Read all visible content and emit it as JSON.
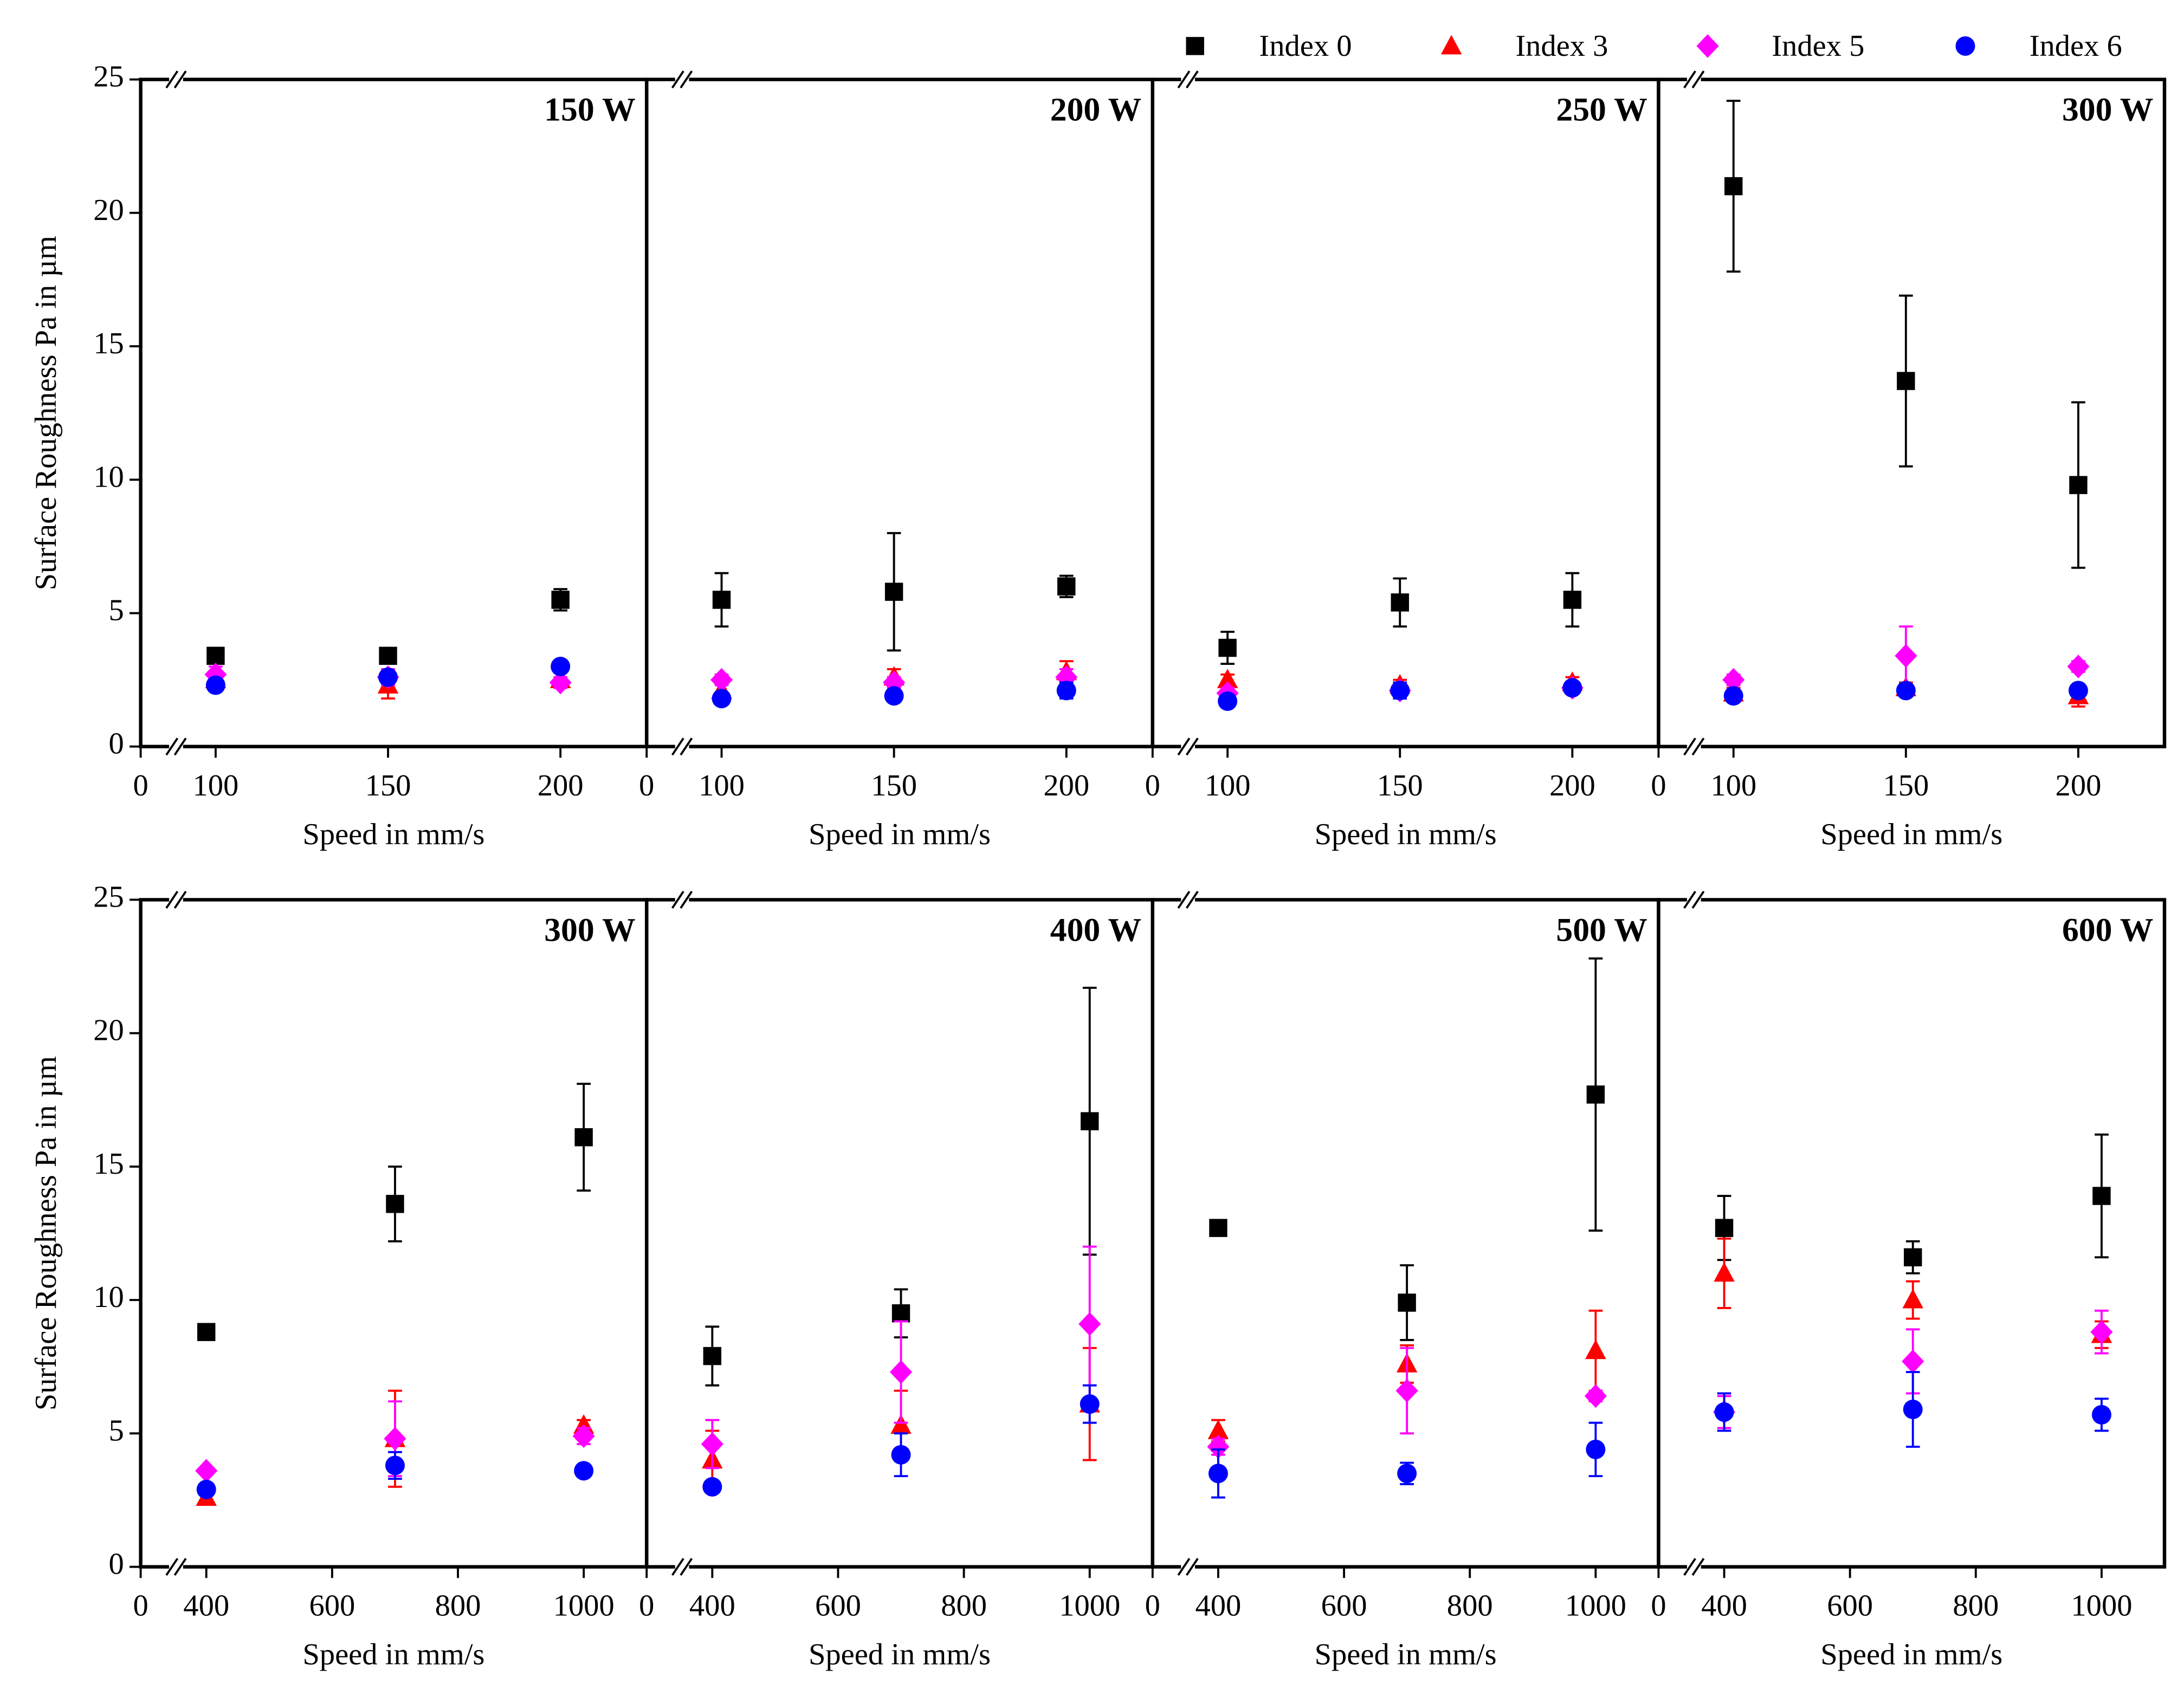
{
  "chart_data": [
    {
      "type": "scatter",
      "title": "150 W",
      "xlabel": "Speed in mm/s",
      "ylabel": "Surface Roughness Pa in µm",
      "x": [
        100,
        150,
        200
      ],
      "xlim": [
        0,
        225
      ],
      "xbreak": [
        5,
        90
      ],
      "xticks": [
        0,
        100,
        150,
        200
      ],
      "ylim": [
        0,
        25
      ],
      "yticks": [
        0,
        5,
        10,
        15,
        20,
        25
      ],
      "legend": "upper right",
      "series": [
        {
          "name": "Index 0",
          "color": "#000000",
          "marker": "square",
          "values": [
            3.4,
            3.4,
            5.5
          ],
          "errors": [
            0.2,
            0.1,
            0.4
          ]
        },
        {
          "name": "Index 3",
          "color": "#ff0000",
          "marker": "triangle",
          "values": [
            2.5,
            2.3,
            2.5
          ],
          "errors": [
            0.3,
            0.5,
            0.3
          ]
        },
        {
          "name": "Index 5",
          "color": "#ff00ff",
          "marker": "diamond",
          "values": [
            2.7,
            2.6,
            2.4
          ],
          "errors": [
            0.3,
            0.3,
            0.2
          ]
        },
        {
          "name": "Index 6",
          "color": "#0000ff",
          "marker": "circle",
          "values": [
            2.3,
            2.6,
            3.0
          ],
          "errors": [
            0.2,
            0.2,
            0.2
          ]
        }
      ]
    },
    {
      "type": "scatter",
      "title": "200 W",
      "xlabel": "Speed in mm/s",
      "x": [
        100,
        150,
        200
      ],
      "xlim": [
        0,
        225
      ],
      "xbreak": [
        5,
        90
      ],
      "xticks": [
        0,
        100,
        150,
        200
      ],
      "series": [
        {
          "name": "Index 0",
          "color": "#000000",
          "marker": "square",
          "values": [
            5.5,
            5.8,
            6.0
          ],
          "errors": [
            1.0,
            2.2,
            0.4
          ]
        },
        {
          "name": "Index 3",
          "color": "#ff0000",
          "marker": "triangle",
          "values": [
            2.1,
            2.6,
            2.8
          ],
          "errors": [
            0.3,
            0.3,
            0.4
          ]
        },
        {
          "name": "Index 5",
          "color": "#ff00ff",
          "marker": "diamond",
          "values": [
            2.5,
            2.4,
            2.6
          ],
          "errors": [
            0.2,
            0.2,
            0.3
          ]
        },
        {
          "name": "Index 6",
          "color": "#0000ff",
          "marker": "circle",
          "values": [
            1.8,
            1.9,
            2.1
          ],
          "errors": [
            0.2,
            0.2,
            0.3
          ]
        }
      ]
    },
    {
      "type": "scatter",
      "title": "250 W",
      "xlabel": "Speed in mm/s",
      "x": [
        100,
        150,
        200
      ],
      "xlim": [
        0,
        225
      ],
      "xbreak": [
        5,
        90
      ],
      "xticks": [
        0,
        100,
        150,
        200
      ],
      "series": [
        {
          "name": "Index 0",
          "color": "#000000",
          "marker": "square",
          "values": [
            3.7,
            5.4,
            5.5
          ],
          "errors": [
            0.6,
            0.9,
            1.0
          ]
        },
        {
          "name": "Index 3",
          "color": "#ff0000",
          "marker": "triangle",
          "values": [
            2.5,
            2.3,
            2.4
          ],
          "errors": [
            0.2,
            0.2,
            0.2
          ]
        },
        {
          "name": "Index 5",
          "color": "#ff00ff",
          "marker": "diamond",
          "values": [
            2.0,
            2.1,
            2.2
          ],
          "errors": [
            0.2,
            0.2,
            0.2
          ]
        },
        {
          "name": "Index 6",
          "color": "#0000ff",
          "marker": "circle",
          "values": [
            1.7,
            2.1,
            2.2
          ],
          "errors": [
            0.2,
            0.3,
            0.2
          ]
        }
      ]
    },
    {
      "type": "scatter",
      "title": "300 W",
      "xlabel": "Speed in mm/s",
      "x": [
        100,
        150,
        200
      ],
      "xlim": [
        0,
        225
      ],
      "xbreak": [
        5,
        90
      ],
      "xticks": [
        0,
        100,
        150,
        200
      ],
      "series": [
        {
          "name": "Index 0",
          "color": "#000000",
          "marker": "square",
          "values": [
            21.0,
            13.7,
            9.8
          ],
          "errors": [
            3.2,
            3.2,
            3.1
          ]
        },
        {
          "name": "Index 3",
          "color": "#ff0000",
          "marker": "triangle",
          "values": [
            2.0,
            2.2,
            1.9
          ],
          "errors": [
            0.2,
            0.2,
            0.4
          ]
        },
        {
          "name": "Index 5",
          "color": "#ff00ff",
          "marker": "diamond",
          "values": [
            2.5,
            3.4,
            3.0
          ],
          "errors": [
            0.2,
            1.1,
            0.2
          ]
        },
        {
          "name": "Index 6",
          "color": "#0000ff",
          "marker": "circle",
          "values": [
            1.9,
            2.1,
            2.1
          ],
          "errors": [
            0.2,
            0.2,
            0.2
          ]
        }
      ]
    },
    {
      "type": "scatter",
      "title": "300 W",
      "xlabel": "Speed in mm/s",
      "ylabel": "Surface Roughness Pa in µm",
      "x": [
        400,
        700,
        1000
      ],
      "xlim": [
        0,
        1100
      ],
      "xbreak": [
        20,
        360
      ],
      "xticks": [
        0,
        400,
        600,
        800,
        1000
      ],
      "ylim": [
        0,
        25
      ],
      "yticks": [
        0,
        5,
        10,
        15,
        20,
        25
      ],
      "series": [
        {
          "name": "Index 0",
          "color": "#000000",
          "marker": "square",
          "values": [
            8.8,
            13.6,
            16.1
          ],
          "errors": [
            0.1,
            1.4,
            2.0
          ]
        },
        {
          "name": "Index 3",
          "color": "#ff0000",
          "marker": "triangle",
          "values": [
            2.6,
            4.8,
            5.3
          ],
          "errors": [
            0.1,
            1.8,
            0.2
          ]
        },
        {
          "name": "Index 5",
          "color": "#ff00ff",
          "marker": "diamond",
          "values": [
            3.6,
            4.8,
            4.9
          ],
          "errors": [
            0.1,
            1.4,
            0.3
          ]
        },
        {
          "name": "Index 6",
          "color": "#0000ff",
          "marker": "circle",
          "values": [
            2.9,
            3.8,
            3.6
          ],
          "errors": [
            0.1,
            0.5,
            0.1
          ]
        }
      ]
    },
    {
      "type": "scatter",
      "title": "400 W",
      "xlabel": "Speed in mm/s",
      "x": [
        400,
        700,
        1000
      ],
      "xlim": [
        0,
        1100
      ],
      "xbreak": [
        20,
        360
      ],
      "xticks": [
        0,
        400,
        600,
        800,
        1000
      ],
      "series": [
        {
          "name": "Index 0",
          "color": "#000000",
          "marker": "square",
          "values": [
            7.9,
            9.5,
            16.7
          ],
          "errors": [
            1.1,
            0.9,
            5.0
          ]
        },
        {
          "name": "Index 3",
          "color": "#ff0000",
          "marker": "triangle",
          "values": [
            4.0,
            5.3,
            6.1
          ],
          "errors": [
            1.1,
            1.3,
            2.1
          ]
        },
        {
          "name": "Index 5",
          "color": "#ff00ff",
          "marker": "diamond",
          "values": [
            4.6,
            7.3,
            9.1
          ],
          "errors": [
            0.9,
            1.9,
            2.9
          ]
        },
        {
          "name": "Index 6",
          "color": "#0000ff",
          "marker": "circle",
          "values": [
            3.0,
            4.2,
            6.1
          ],
          "errors": [
            0.1,
            0.8,
            0.7
          ]
        }
      ]
    },
    {
      "type": "scatter",
      "title": "500 W",
      "xlabel": "Speed in mm/s",
      "x": [
        400,
        700,
        1000
      ],
      "xlim": [
        0,
        1100
      ],
      "xbreak": [
        20,
        360
      ],
      "xticks": [
        0,
        400,
        600,
        800,
        1000
      ],
      "series": [
        {
          "name": "Index 0",
          "color": "#000000",
          "marker": "square",
          "values": [
            12.7,
            9.9,
            17.7
          ],
          "errors": [
            0.2,
            1.4,
            5.1
          ]
        },
        {
          "name": "Index 3",
          "color": "#ff0000",
          "marker": "triangle",
          "values": [
            5.1,
            7.6,
            8.1
          ],
          "errors": [
            0.4,
            0.7,
            1.5
          ]
        },
        {
          "name": "Index 5",
          "color": "#ff00ff",
          "marker": "diamond",
          "values": [
            4.5,
            6.6,
            6.4
          ],
          "errors": [
            0.3,
            1.6,
            0.2
          ]
        },
        {
          "name": "Index 6",
          "color": "#0000ff",
          "marker": "circle",
          "values": [
            3.5,
            3.5,
            4.4
          ],
          "errors": [
            0.9,
            0.4,
            1.0
          ]
        }
      ]
    },
    {
      "type": "scatter",
      "title": "600 W",
      "xlabel": "Speed in mm/s",
      "x": [
        400,
        700,
        1000
      ],
      "xlim": [
        0,
        1100
      ],
      "xbreak": [
        20,
        360
      ],
      "xticks": [
        0,
        400,
        600,
        800,
        1000
      ],
      "series": [
        {
          "name": "Index 0",
          "color": "#000000",
          "marker": "square",
          "values": [
            12.7,
            11.6,
            13.9
          ],
          "errors": [
            1.2,
            0.6,
            2.3
          ]
        },
        {
          "name": "Index 3",
          "color": "#ff0000",
          "marker": "triangle",
          "values": [
            11.0,
            10.0,
            8.7
          ],
          "errors": [
            1.3,
            0.7,
            0.5
          ]
        },
        {
          "name": "Index 5",
          "color": "#ff00ff",
          "marker": "diamond",
          "values": [
            5.8,
            7.7,
            8.8
          ],
          "errors": [
            0.6,
            1.2,
            0.8
          ]
        },
        {
          "name": "Index 6",
          "color": "#0000ff",
          "marker": "circle",
          "values": [
            5.8,
            5.9,
            5.7
          ],
          "errors": [
            0.7,
            1.4,
            0.6
          ]
        }
      ]
    }
  ]
}
